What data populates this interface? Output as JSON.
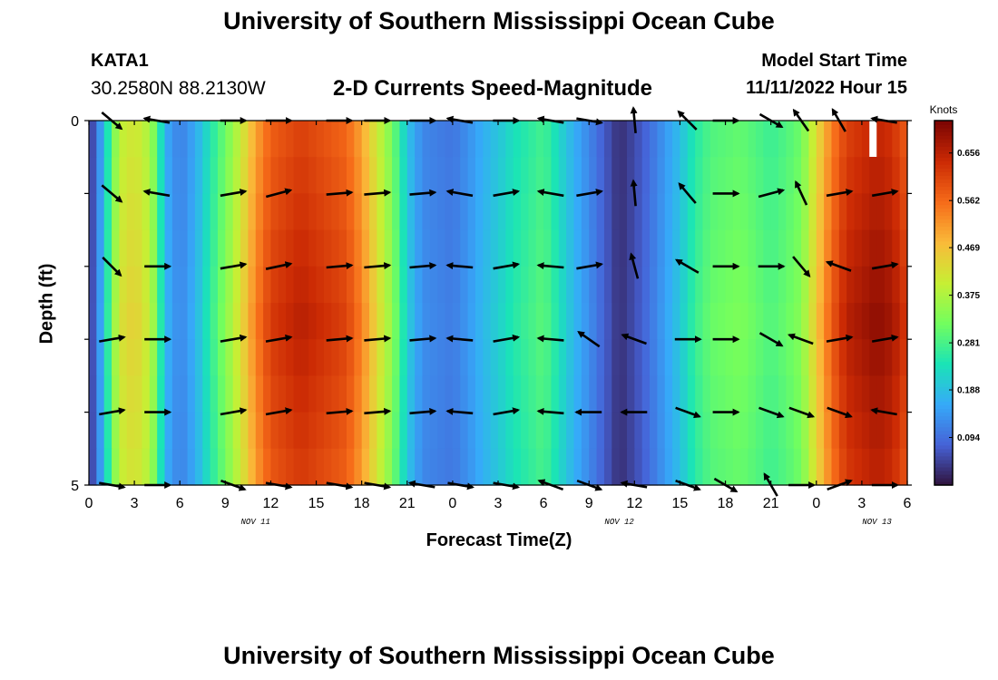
{
  "page": {
    "title_top": "University of Southern Mississippi Ocean Cube",
    "title_bottom": "University of Southern Mississippi Ocean Cube",
    "station_id": "KATA1",
    "station_coords": "30.2580N  88.2130W",
    "subtitle": "2-D Currents Speed-Magnitude",
    "model_start_label": "Model Start Time",
    "model_start_value": "11/11/2022 Hour 15"
  },
  "chart_data": {
    "type": "heatmap",
    "title": "2-D Currents Speed-Magnitude",
    "xlabel": "Forecast Time(Z)",
    "ylabel": "Depth (ft)",
    "x_ticks": [
      "0",
      "3",
      "6",
      "9",
      "12",
      "15",
      "18",
      "21",
      "0",
      "3",
      "6",
      "9",
      "12",
      "15",
      "18",
      "21",
      "0",
      "3",
      "6"
    ],
    "x_range_hours": [
      0,
      54
    ],
    "y_ticks": [
      "0",
      "5"
    ],
    "y_range_ft": [
      0,
      5
    ],
    "date_labels": [
      {
        "text": "NOV 11",
        "hour": 11
      },
      {
        "text": "NOV 12",
        "hour": 35
      },
      {
        "text": "NOV 13",
        "hour": 52
      }
    ],
    "colorbar": {
      "unit": "Knots",
      "ticks": [
        "0.656",
        "0.562",
        "0.469",
        "0.375",
        "0.281",
        "0.188",
        "0.094"
      ],
      "tick_values": [
        0.656,
        0.562,
        0.469,
        0.375,
        0.281,
        0.188,
        0.094
      ],
      "range": [
        0.0,
        0.72
      ],
      "colors": [
        "#30123b",
        "#4662d7",
        "#36aaf9",
        "#1ae4b6",
        "#72fe5e",
        "#c7ef34",
        "#faba39",
        "#f66b19",
        "#cb2a04",
        "#7a0403"
      ]
    },
    "speed_by_hour": {
      "hours": [
        0,
        0.5,
        1,
        1.5,
        2,
        3,
        4,
        4.5,
        5,
        6,
        7,
        8,
        9,
        10,
        11,
        12,
        14,
        17,
        18,
        19,
        20,
        21,
        22,
        24,
        25,
        26,
        27,
        28,
        30,
        31,
        32,
        33,
        34,
        35,
        36,
        37,
        38,
        39,
        40,
        41,
        42,
        43,
        44,
        45,
        46,
        47,
        48,
        49,
        50,
        51,
        52,
        53,
        54
      ],
      "speeds": [
        0.03,
        0.1,
        0.2,
        0.32,
        0.42,
        0.45,
        0.4,
        0.32,
        0.18,
        0.12,
        0.17,
        0.26,
        0.34,
        0.43,
        0.54,
        0.62,
        0.66,
        0.61,
        0.54,
        0.44,
        0.35,
        0.21,
        0.13,
        0.11,
        0.14,
        0.18,
        0.21,
        0.25,
        0.3,
        0.24,
        0.18,
        0.13,
        0.08,
        0.03,
        0.06,
        0.1,
        0.15,
        0.2,
        0.27,
        0.31,
        0.32,
        0.33,
        0.31,
        0.29,
        0.31,
        0.34,
        0.46,
        0.58,
        0.66,
        0.68,
        0.7,
        0.68,
        0.62
      ]
    },
    "depth_rows_ft": [
      0,
      0.5,
      1,
      1.5,
      2,
      2.5,
      3,
      3.5,
      4,
      4.5,
      5
    ],
    "vector_rows_ft": [
      0,
      1,
      2,
      3,
      4,
      5
    ],
    "vector_columns_hour": [
      1.5,
      4.5,
      9.5,
      12.5,
      16.5,
      19,
      22,
      24.5,
      27.5,
      30.5,
      33,
      36,
      39.5,
      42,
      45,
      47,
      49.5,
      52.5
    ],
    "vector_angles_deg": [
      [
        -40,
        170,
        0,
        0,
        0,
        0,
        0,
        170,
        0,
        170,
        -10,
        95,
        135,
        0,
        -30,
        125,
        120,
        170
      ],
      [
        -40,
        170,
        10,
        15,
        5,
        5,
        5,
        170,
        10,
        170,
        10,
        95,
        130,
        0,
        15,
        115,
        10,
        10
      ],
      [
        -45,
        0,
        10,
        12,
        5,
        5,
        5,
        175,
        10,
        175,
        10,
        105,
        150,
        0,
        0,
        -50,
        160,
        10
      ],
      [
        10,
        0,
        10,
        10,
        5,
        5,
        5,
        175,
        10,
        175,
        145,
        160,
        0,
        0,
        -30,
        160,
        10,
        10
      ],
      [
        10,
        0,
        10,
        10,
        5,
        5,
        5,
        175,
        10,
        175,
        180,
        180,
        -20,
        0,
        -20,
        -20,
        -20,
        170
      ],
      [
        -10,
        0,
        -20,
        -10,
        -10,
        -10,
        170,
        -10,
        -10,
        160,
        -20,
        170,
        -20,
        -30,
        120,
        0,
        20,
        0
      ]
    ]
  }
}
